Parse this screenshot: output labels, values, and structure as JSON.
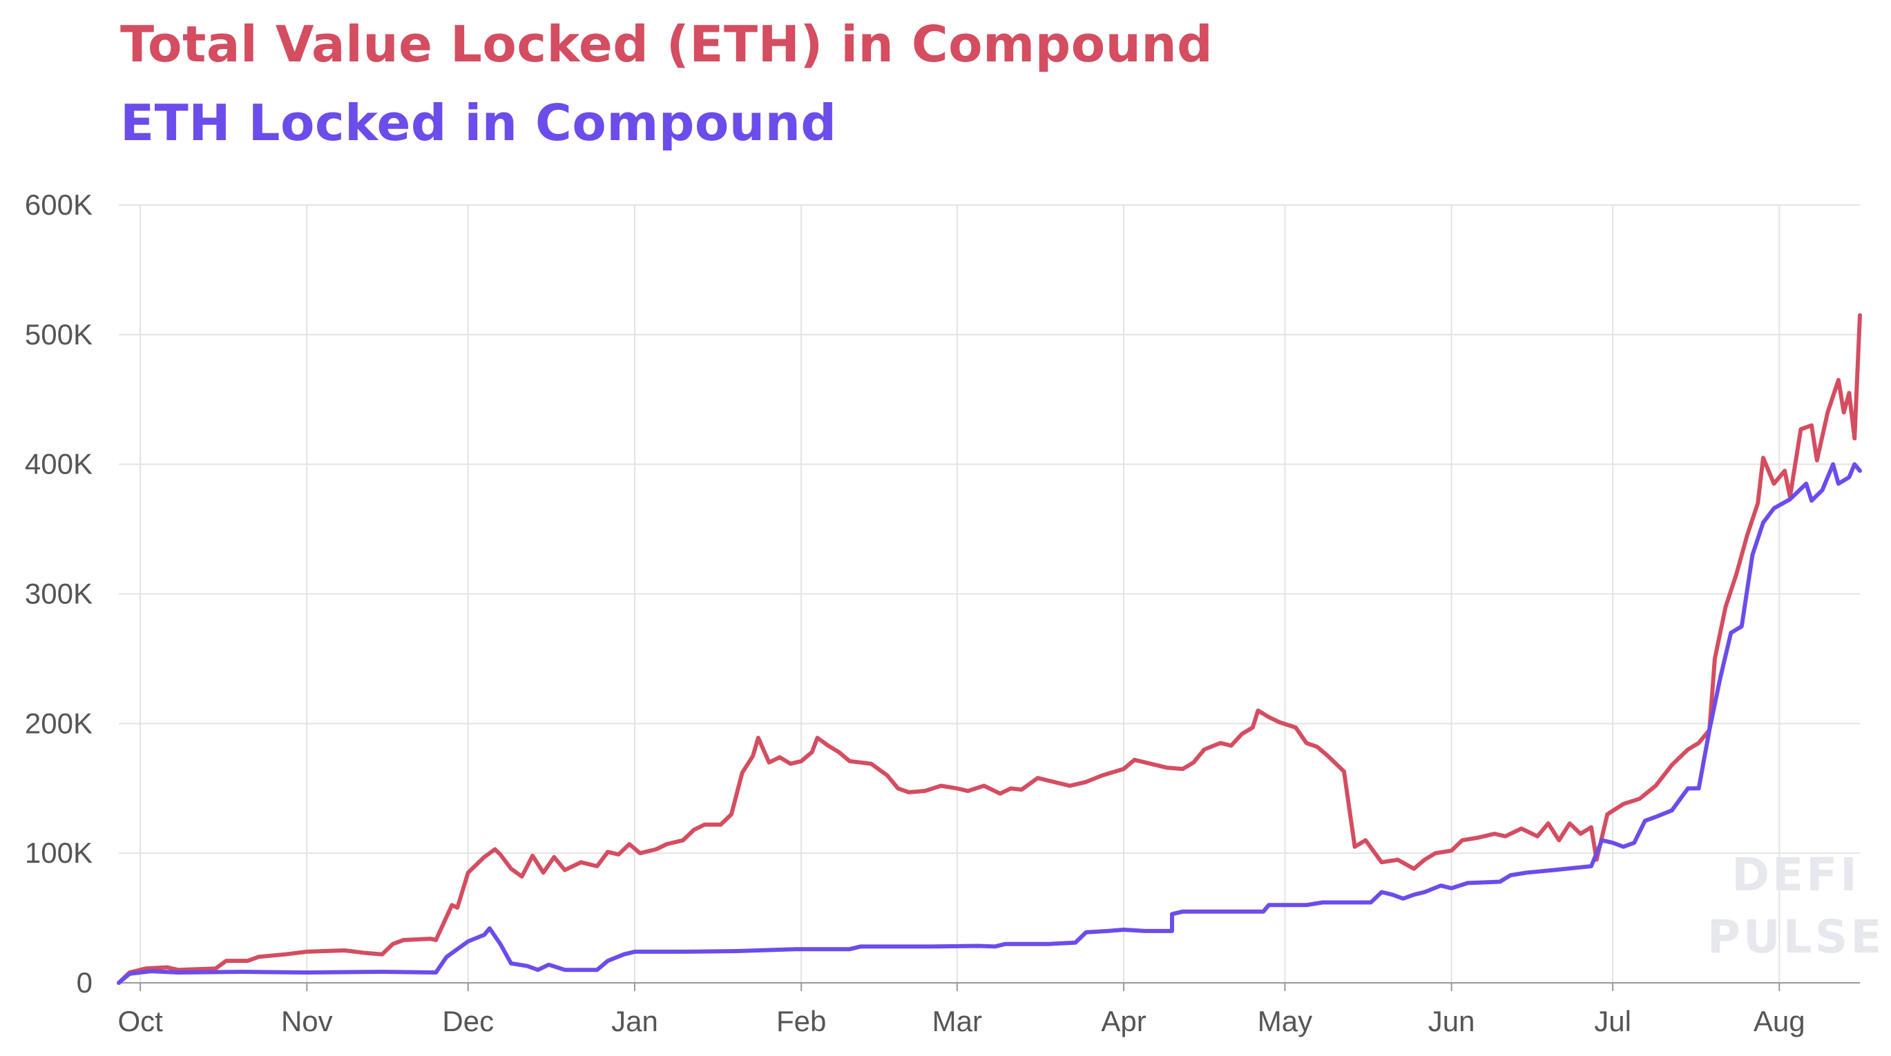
{
  "titles": {
    "tvl": "Total Value Locked (ETH) in Compound",
    "eth": "ETH Locked in Compound"
  },
  "colors": {
    "tvl": "#d44d60",
    "eth": "#6c4cea",
    "grid": "#e3e3e3",
    "axis": "#999999"
  },
  "watermark": [
    "DEFI",
    "PULSE"
  ],
  "chart_data": {
    "type": "line",
    "xlim": [
      "2019-09-27",
      "2020-08-16"
    ],
    "ylim": [
      0,
      600000
    ],
    "y_ticks": [
      {
        "value": 0,
        "label": "0"
      },
      {
        "value": 100000,
        "label": "100K"
      },
      {
        "value": 200000,
        "label": "200K"
      },
      {
        "value": 300000,
        "label": "300K"
      },
      {
        "value": 400000,
        "label": "400K"
      },
      {
        "value": 500000,
        "label": "500K"
      },
      {
        "value": 600000,
        "label": "600K"
      }
    ],
    "x_ticks": [
      {
        "date": "2019-10-01",
        "label": "Oct"
      },
      {
        "date": "2019-11-01",
        "label": "Nov"
      },
      {
        "date": "2019-12-01",
        "label": "Dec"
      },
      {
        "date": "2020-01-01",
        "label": "Jan"
      },
      {
        "date": "2020-02-01",
        "label": "Feb"
      },
      {
        "date": "2020-03-01",
        "label": "Mar"
      },
      {
        "date": "2020-04-01",
        "label": "Apr"
      },
      {
        "date": "2020-05-01",
        "label": "May"
      },
      {
        "date": "2020-06-01",
        "label": "Jun"
      },
      {
        "date": "2020-07-01",
        "label": "Jul"
      },
      {
        "date": "2020-08-01",
        "label": "Aug"
      }
    ],
    "grid": true,
    "series": [
      {
        "name": "Total Value Locked (ETH) in Compound",
        "color": "#d44d60",
        "points": [
          [
            "2019-09-27",
            0
          ],
          [
            "2019-09-29",
            8000
          ],
          [
            "2019-10-02",
            11000
          ],
          [
            "2019-10-06",
            12000
          ],
          [
            "2019-10-08",
            10000
          ],
          [
            "2019-10-15",
            11000
          ],
          [
            "2019-10-17",
            17000
          ],
          [
            "2019-10-21",
            17000
          ],
          [
            "2019-10-23",
            20000
          ],
          [
            "2019-10-28",
            22000
          ],
          [
            "2019-11-01",
            24000
          ],
          [
            "2019-11-08",
            25000
          ],
          [
            "2019-11-12",
            23000
          ],
          [
            "2019-11-15",
            22000
          ],
          [
            "2019-11-17",
            30000
          ],
          [
            "2019-11-19",
            33000
          ],
          [
            "2019-11-24",
            34000
          ],
          [
            "2019-11-25",
            33000
          ],
          [
            "2019-11-28",
            60000
          ],
          [
            "2019-11-29",
            58000
          ],
          [
            "2019-12-01",
            85000
          ],
          [
            "2019-12-04",
            97000
          ],
          [
            "2019-12-06",
            103000
          ],
          [
            "2019-12-07",
            99000
          ],
          [
            "2019-12-09",
            88000
          ],
          [
            "2019-12-11",
            82000
          ],
          [
            "2019-12-13",
            98000
          ],
          [
            "2019-12-15",
            85000
          ],
          [
            "2019-12-17",
            97000
          ],
          [
            "2019-12-19",
            87000
          ],
          [
            "2019-12-22",
            93000
          ],
          [
            "2019-12-25",
            90000
          ],
          [
            "2019-12-27",
            101000
          ],
          [
            "2019-12-29",
            99000
          ],
          [
            "2019-12-31",
            107000
          ],
          [
            "2020-01-02",
            100000
          ],
          [
            "2020-01-05",
            103000
          ],
          [
            "2020-01-07",
            107000
          ],
          [
            "2020-01-10",
            110000
          ],
          [
            "2020-01-12",
            118000
          ],
          [
            "2020-01-14",
            122000
          ],
          [
            "2020-01-17",
            122000
          ],
          [
            "2020-01-19",
            130000
          ],
          [
            "2020-01-21",
            162000
          ],
          [
            "2020-01-23",
            175000
          ],
          [
            "2020-01-24",
            189000
          ],
          [
            "2020-01-26",
            170000
          ],
          [
            "2020-01-28",
            174000
          ],
          [
            "2020-01-30",
            169000
          ],
          [
            "2020-02-01",
            171000
          ],
          [
            "2020-02-03",
            178000
          ],
          [
            "2020-02-04",
            189000
          ],
          [
            "2020-02-06",
            183000
          ],
          [
            "2020-02-08",
            178000
          ],
          [
            "2020-02-10",
            171000
          ],
          [
            "2020-02-12",
            170000
          ],
          [
            "2020-02-14",
            169000
          ],
          [
            "2020-02-17",
            160000
          ],
          [
            "2020-02-19",
            150000
          ],
          [
            "2020-02-21",
            147000
          ],
          [
            "2020-02-24",
            148000
          ],
          [
            "2020-02-27",
            152000
          ],
          [
            "2020-03-01",
            150000
          ],
          [
            "2020-03-03",
            148000
          ],
          [
            "2020-03-06",
            152000
          ],
          [
            "2020-03-09",
            146000
          ],
          [
            "2020-03-11",
            150000
          ],
          [
            "2020-03-13",
            149000
          ],
          [
            "2020-03-16",
            158000
          ],
          [
            "2020-03-19",
            155000
          ],
          [
            "2020-03-22",
            152000
          ],
          [
            "2020-03-25",
            155000
          ],
          [
            "2020-03-28",
            160000
          ],
          [
            "2020-04-01",
            165000
          ],
          [
            "2020-04-03",
            172000
          ],
          [
            "2020-04-06",
            169000
          ],
          [
            "2020-04-09",
            166000
          ],
          [
            "2020-04-12",
            165000
          ],
          [
            "2020-04-14",
            170000
          ],
          [
            "2020-04-16",
            180000
          ],
          [
            "2020-04-19",
            185000
          ],
          [
            "2020-04-21",
            183000
          ],
          [
            "2020-04-23",
            192000
          ],
          [
            "2020-04-25",
            197000
          ],
          [
            "2020-04-26",
            210000
          ],
          [
            "2020-04-28",
            205000
          ],
          [
            "2020-04-30",
            201000
          ],
          [
            "2020-05-03",
            197000
          ],
          [
            "2020-05-05",
            185000
          ],
          [
            "2020-05-07",
            182000
          ],
          [
            "2020-05-09",
            175000
          ],
          [
            "2020-05-12",
            163000
          ],
          [
            "2020-05-14",
            105000
          ],
          [
            "2020-05-16",
            110000
          ],
          [
            "2020-05-19",
            93000
          ],
          [
            "2020-05-22",
            95000
          ],
          [
            "2020-05-25",
            88000
          ],
          [
            "2020-05-27",
            95000
          ],
          [
            "2020-05-29",
            100000
          ],
          [
            "2020-06-01",
            102000
          ],
          [
            "2020-06-03",
            110000
          ],
          [
            "2020-06-06",
            112000
          ],
          [
            "2020-06-09",
            115000
          ],
          [
            "2020-06-11",
            113000
          ],
          [
            "2020-06-14",
            119000
          ],
          [
            "2020-06-17",
            113000
          ],
          [
            "2020-06-19",
            123000
          ],
          [
            "2020-06-21",
            110000
          ],
          [
            "2020-06-23",
            123000
          ],
          [
            "2020-06-25",
            115000
          ],
          [
            "2020-06-27",
            120000
          ],
          [
            "2020-06-28",
            95000
          ],
          [
            "2020-06-30",
            130000
          ],
          [
            "2020-07-03",
            138000
          ],
          [
            "2020-07-06",
            142000
          ],
          [
            "2020-07-09",
            152000
          ],
          [
            "2020-07-12",
            168000
          ],
          [
            "2020-07-15",
            180000
          ],
          [
            "2020-07-17",
            185000
          ],
          [
            "2020-07-19",
            195000
          ],
          [
            "2020-07-20",
            250000
          ],
          [
            "2020-07-22",
            290000
          ],
          [
            "2020-07-24",
            315000
          ],
          [
            "2020-07-26",
            345000
          ],
          [
            "2020-07-28",
            370000
          ],
          [
            "2020-07-29",
            405000
          ],
          [
            "2020-07-31",
            385000
          ],
          [
            "2020-08-02",
            395000
          ],
          [
            "2020-08-03",
            375000
          ],
          [
            "2020-08-05",
            427000
          ],
          [
            "2020-08-07",
            430000
          ],
          [
            "2020-08-08",
            403000
          ],
          [
            "2020-08-10",
            440000
          ],
          [
            "2020-08-12",
            465000
          ],
          [
            "2020-08-13",
            440000
          ],
          [
            "2020-08-14",
            455000
          ],
          [
            "2020-08-15",
            420000
          ],
          [
            "2020-08-16",
            515000
          ]
        ]
      },
      {
        "name": "ETH Locked in Compound",
        "color": "#6c4cea",
        "points": [
          [
            "2019-09-27",
            0
          ],
          [
            "2019-09-29",
            7000
          ],
          [
            "2019-10-03",
            9000
          ],
          [
            "2019-10-08",
            8000
          ],
          [
            "2019-10-20",
            8500
          ],
          [
            "2019-11-01",
            8000
          ],
          [
            "2019-11-15",
            8500
          ],
          [
            "2019-11-25",
            8000
          ],
          [
            "2019-11-27",
            20000
          ],
          [
            "2019-12-01",
            32000
          ],
          [
            "2019-12-04",
            37000
          ],
          [
            "2019-12-05",
            42000
          ],
          [
            "2019-12-07",
            30000
          ],
          [
            "2019-12-09",
            15000
          ],
          [
            "2019-12-12",
            13000
          ],
          [
            "2019-12-14",
            10000
          ],
          [
            "2019-12-16",
            14000
          ],
          [
            "2019-12-19",
            10000
          ],
          [
            "2019-12-25",
            10000
          ],
          [
            "2019-12-27",
            17000
          ],
          [
            "2019-12-30",
            22000
          ],
          [
            "2020-01-01",
            24000
          ],
          [
            "2020-01-10",
            24000
          ],
          [
            "2020-01-20",
            24500
          ],
          [
            "2020-01-31",
            26000
          ],
          [
            "2020-02-10",
            26000
          ],
          [
            "2020-02-12",
            28000
          ],
          [
            "2020-02-25",
            28000
          ],
          [
            "2020-03-05",
            28500
          ],
          [
            "2020-03-08",
            28000
          ],
          [
            "2020-03-10",
            30000
          ],
          [
            "2020-03-18",
            30000
          ],
          [
            "2020-03-23",
            31000
          ],
          [
            "2020-03-25",
            39000
          ],
          [
            "2020-03-29",
            40000
          ],
          [
            "2020-04-01",
            41000
          ],
          [
            "2020-04-05",
            40000
          ],
          [
            "2020-04-10",
            40000
          ],
          [
            "2020-04-10",
            53000
          ],
          [
            "2020-04-12",
            55000
          ],
          [
            "2020-04-20",
            55000
          ],
          [
            "2020-04-27",
            55000
          ],
          [
            "2020-04-28",
            60000
          ],
          [
            "2020-05-05",
            60000
          ],
          [
            "2020-05-08",
            62000
          ],
          [
            "2020-05-12",
            62000
          ],
          [
            "2020-05-17",
            62000
          ],
          [
            "2020-05-19",
            70000
          ],
          [
            "2020-05-21",
            68000
          ],
          [
            "2020-05-23",
            65000
          ],
          [
            "2020-05-25",
            68000
          ],
          [
            "2020-05-27",
            70000
          ],
          [
            "2020-05-30",
            75000
          ],
          [
            "2020-06-01",
            73000
          ],
          [
            "2020-06-04",
            77000
          ],
          [
            "2020-06-10",
            78000
          ],
          [
            "2020-06-12",
            83000
          ],
          [
            "2020-06-15",
            85000
          ],
          [
            "2020-06-20",
            87000
          ],
          [
            "2020-06-27",
            90000
          ],
          [
            "2020-06-29",
            110000
          ],
          [
            "2020-07-01",
            108000
          ],
          [
            "2020-07-03",
            105000
          ],
          [
            "2020-07-05",
            108000
          ],
          [
            "2020-07-07",
            125000
          ],
          [
            "2020-07-09",
            128000
          ],
          [
            "2020-07-12",
            133000
          ],
          [
            "2020-07-15",
            150000
          ],
          [
            "2020-07-17",
            150000
          ],
          [
            "2020-07-19",
            195000
          ],
          [
            "2020-07-21",
            235000
          ],
          [
            "2020-07-23",
            270000
          ],
          [
            "2020-07-25",
            275000
          ],
          [
            "2020-07-27",
            330000
          ],
          [
            "2020-07-29",
            355000
          ],
          [
            "2020-07-31",
            366000
          ],
          [
            "2020-08-03",
            373000
          ],
          [
            "2020-08-06",
            385000
          ],
          [
            "2020-08-07",
            372000
          ],
          [
            "2020-08-09",
            380000
          ],
          [
            "2020-08-11",
            400000
          ],
          [
            "2020-08-12",
            385000
          ],
          [
            "2020-08-14",
            390000
          ],
          [
            "2020-08-15",
            400000
          ],
          [
            "2020-08-16",
            395000
          ]
        ]
      }
    ]
  }
}
